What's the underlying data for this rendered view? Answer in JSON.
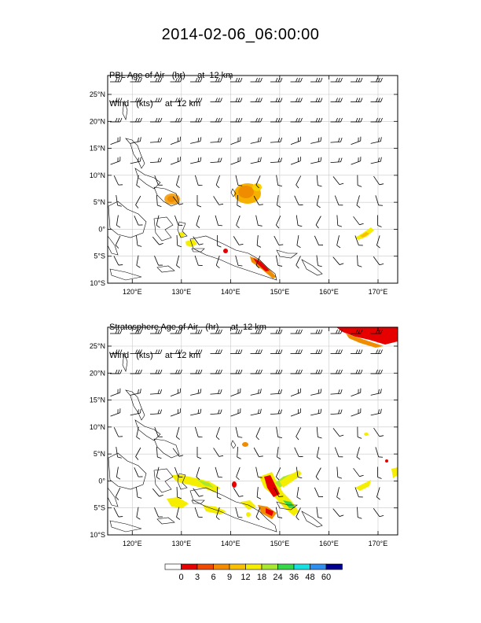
{
  "title": "2014-02-06_06:00:00",
  "panels": [
    {
      "id": "pbl",
      "field_label": "PBL Age of Air",
      "field_units": "(hr)",
      "field_level": "at  12 km",
      "wind_label": "Wind",
      "wind_units": "(kts)",
      "wind_level": "at  12 km"
    },
    {
      "id": "strat",
      "field_label": "Stratosphere Age of Air",
      "field_units": "(hr)",
      "field_level": "at  12 km",
      "wind_label": "Wind",
      "wind_units": "(kts)",
      "wind_level": "at  12 km"
    }
  ],
  "map": {
    "lon_range": [
      115,
      174
    ],
    "lat_range": [
      -10,
      28.5
    ],
    "lon_ticks": [
      120,
      130,
      140,
      150,
      160,
      170
    ],
    "lon_tick_labels": [
      "120°E",
      "130°E",
      "140°E",
      "150°E",
      "160°E",
      "170°E"
    ],
    "lat_ticks": [
      -10,
      -5,
      0,
      5,
      10,
      15,
      20,
      25
    ],
    "lat_tick_labels": [
      "10°S",
      "5°S",
      "0°",
      "5°N",
      "10°N",
      "15°N",
      "20°N",
      "25°N"
    ]
  },
  "colorbar": {
    "labels": [
      "0",
      "3",
      "6",
      "9",
      "12",
      "18",
      "24",
      "36",
      "48",
      "60"
    ],
    "colors": [
      "#ffffff",
      "#e60000",
      "#f04a00",
      "#f58c00",
      "#f8c000",
      "#f6ee00",
      "#a8e830",
      "#36d84a",
      "#18e0e0",
      "#2f8ff0",
      "#000090"
    ]
  }
}
